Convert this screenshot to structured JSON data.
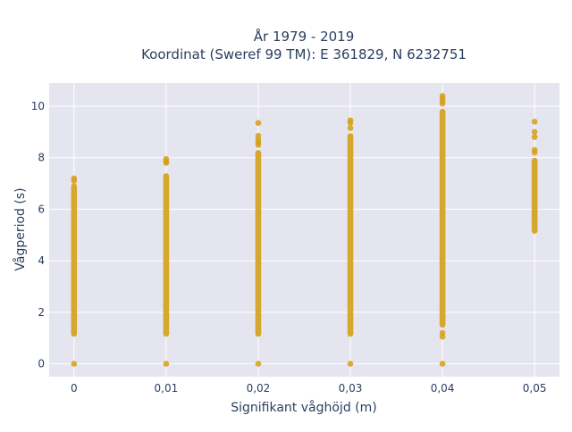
{
  "title_line1": "År 1979 - 2019",
  "title_line2": "Koordinat (Sweref 99 TM): E 361829, N 6232751",
  "chart_data": {
    "type": "scatter",
    "xlabel": "Signifikant våghöjd (m)",
    "ylabel": "Vågperiod (s)",
    "xlim": [
      -0.0027,
      0.0527
    ],
    "ylim": [
      -0.5,
      10.9
    ],
    "x_ticks": [
      {
        "value": 0,
        "label": "0"
      },
      {
        "value": 0.01,
        "label": "0,01"
      },
      {
        "value": 0.02,
        "label": "0,02"
      },
      {
        "value": 0.03,
        "label": "0,03"
      },
      {
        "value": 0.04,
        "label": "0,04"
      },
      {
        "value": 0.05,
        "label": "0,05"
      }
    ],
    "y_ticks": [
      {
        "value": 0,
        "label": "0"
      },
      {
        "value": 2,
        "label": "2"
      },
      {
        "value": 4,
        "label": "4"
      },
      {
        "value": 6,
        "label": "6"
      },
      {
        "value": 8,
        "label": "8"
      },
      {
        "value": 10,
        "label": "10"
      }
    ],
    "grid": true,
    "marker_color": "#d4a017",
    "plot_bg": "#e5e5f0",
    "columns": [
      {
        "x": 0,
        "zero": true,
        "y_min": 1.05,
        "y_max": 7.0,
        "outliers": [
          7.2,
          7.1
        ]
      },
      {
        "x": 0.01,
        "zero": true,
        "y_min": 1.05,
        "y_max": 7.4,
        "outliers": [
          7.95,
          7.85,
          7.8
        ]
      },
      {
        "x": 0.02,
        "zero": true,
        "y_min": 1.05,
        "y_max": 8.3,
        "outliers": [
          9.35,
          8.85,
          8.7,
          8.6,
          8.5
        ]
      },
      {
        "x": 0.03,
        "zero": true,
        "y_min": 1.05,
        "y_max": 8.95,
        "outliers": [
          9.45,
          9.35,
          9.15
        ]
      },
      {
        "x": 0.04,
        "zero": true,
        "y_min": 1.4,
        "y_max": 9.9,
        "outliers": [
          10.4,
          10.3,
          10.2,
          10.1,
          1.2,
          1.05
        ]
      },
      {
        "x": 0.05,
        "zero": false,
        "y_min": 5.05,
        "y_max": 8.0,
        "outliers": [
          9.4,
          9.0,
          8.8,
          8.3,
          8.2
        ]
      }
    ]
  }
}
